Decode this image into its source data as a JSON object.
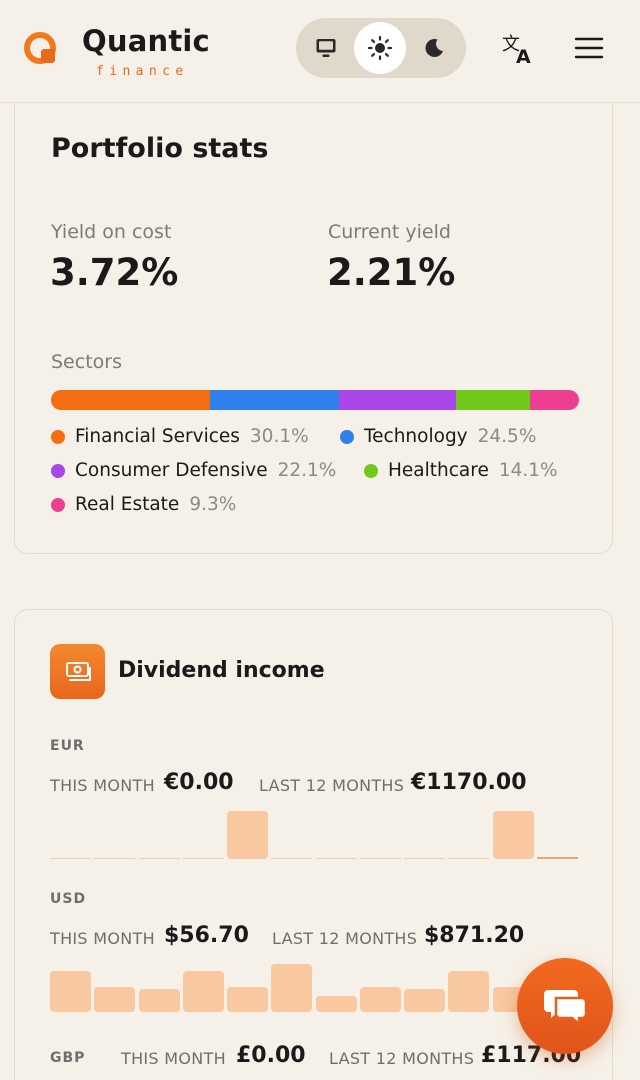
{
  "header": {
    "logo_title": "Quantic",
    "logo_sub": "finance",
    "theme_options": [
      "system",
      "light",
      "dark"
    ],
    "theme_selected": "light"
  },
  "stats": {
    "title": "Portfolio stats",
    "yield_on_cost_label": "Yield on cost",
    "yield_on_cost_value": "3.72%",
    "current_yield_label": "Current yield",
    "current_yield_value": "2.21%",
    "sectors_label": "Sectors",
    "sectors": [
      {
        "name": "Financial Services",
        "pct": "30.1%",
        "value": 30.1,
        "color": "#f36e12"
      },
      {
        "name": "Technology",
        "pct": "24.5%",
        "value": 24.5,
        "color": "#2f80ed"
      },
      {
        "name": "Consumer Defensive",
        "pct": "22.1%",
        "value": 22.1,
        "color": "#a946ea"
      },
      {
        "name": "Healthcare",
        "pct": "14.1%",
        "value": 14.1,
        "color": "#71c71b"
      },
      {
        "name": "Real Estate",
        "pct": "9.3%",
        "value": 9.3,
        "color": "#ec3f92"
      }
    ]
  },
  "dividend": {
    "title": "Dividend income",
    "this_month_label": "THIS MONTH",
    "last12_label": "LAST 12 MONTHS",
    "currencies": [
      {
        "code": "EUR",
        "this_month": "€0.00",
        "last12": "€1170.00",
        "monthly": [
          0,
          0,
          0,
          0,
          1,
          0,
          0,
          0,
          0,
          0,
          1,
          0
        ]
      },
      {
        "code": "USD",
        "this_month": "$56.70",
        "last12": "$871.20",
        "monthly": [
          0.85,
          0.52,
          0.47,
          0.85,
          0.52,
          1.0,
          0.34,
          0.52,
          0.47,
          0.85,
          0.52,
          0
        ]
      },
      {
        "code": "GBP",
        "this_month": "£0.00",
        "last12": "£117.00"
      }
    ]
  },
  "colors": {
    "accent": "#e9691d",
    "background": "#f6f1e8",
    "bar_fill": "#f8c8a0"
  }
}
